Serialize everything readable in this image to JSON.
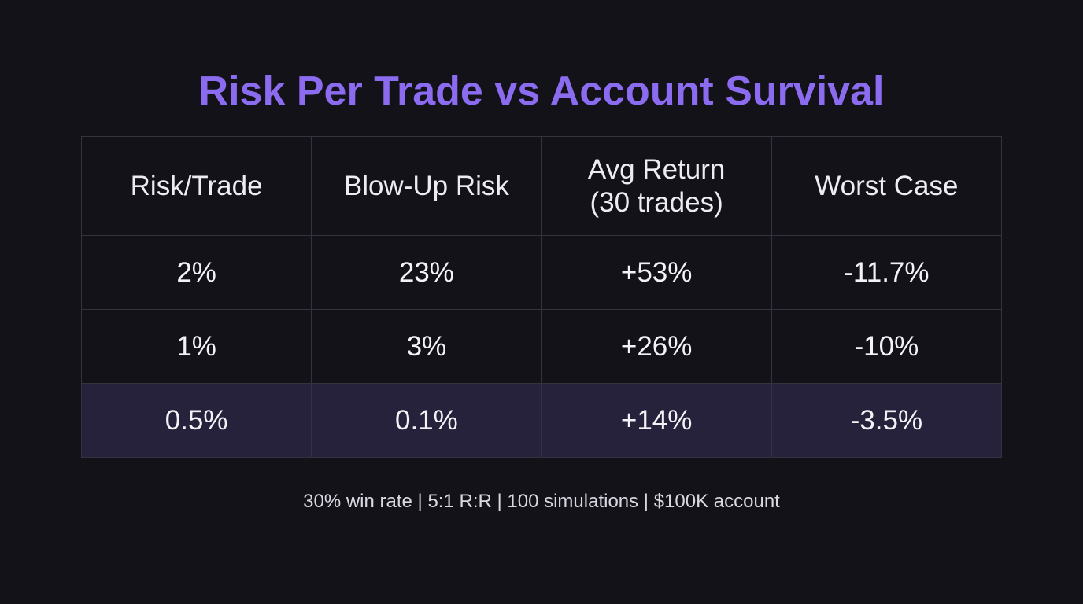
{
  "title": "Risk Per Trade vs Account Survival",
  "table": {
    "headers": [
      "Risk/Trade",
      "Blow-Up Risk",
      "Avg Return\n(30 trades)",
      "Worst Case"
    ],
    "rows": [
      [
        "2%",
        "23%",
        "+53%",
        "-11.7%"
      ],
      [
        "1%",
        "3%",
        "+26%",
        "-10%"
      ],
      [
        "0.5%",
        "0.1%",
        "+14%",
        "-3.5%"
      ]
    ]
  },
  "footnote": "30% win rate | 5:1 R:R | 100 simulations | $100K account",
  "colors": {
    "background": "#131218",
    "title": "#8b6cf0",
    "negative": "#d26a6a",
    "accent": "#8f72ec",
    "highlight_row": "#27223b",
    "grid": "#33323f"
  }
}
